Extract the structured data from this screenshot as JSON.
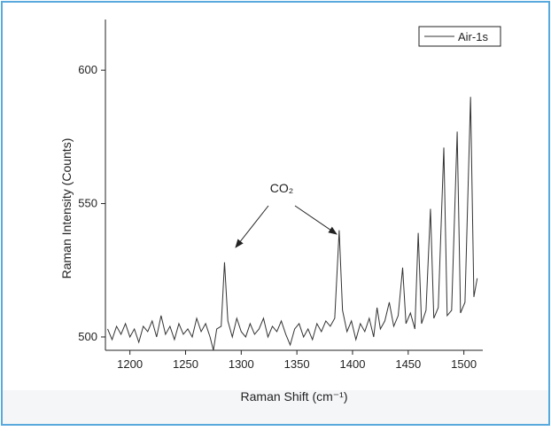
{
  "chart_data": {
    "type": "line",
    "x_label": "Raman Shift (cm⁻¹)",
    "y_label": "Raman Intensity (Counts)",
    "annotation": "CO₂",
    "xlim": [
      1178,
      1517
    ],
    "xticks": [
      1200,
      1250,
      1300,
      1350,
      1400,
      1450,
      1500
    ],
    "ylim": [
      495,
      619
    ],
    "yticks": [
      500,
      550,
      600
    ],
    "x": [
      1180,
      1184,
      1188,
      1192,
      1196,
      1200,
      1204,
      1208,
      1212,
      1216,
      1220,
      1224,
      1228,
      1232,
      1236,
      1240,
      1244,
      1248,
      1252,
      1256,
      1260,
      1264,
      1268,
      1272,
      1275,
      1278,
      1282,
      1285,
      1288,
      1292,
      1296,
      1300,
      1304,
      1308,
      1312,
      1316,
      1320,
      1324,
      1328,
      1332,
      1336,
      1340,
      1344,
      1348,
      1352,
      1356,
      1360,
      1364,
      1368,
      1372,
      1376,
      1380,
      1384,
      1388,
      1391,
      1395,
      1399,
      1403,
      1407,
      1411,
      1415,
      1419,
      1422,
      1425,
      1429,
      1433,
      1437,
      1441,
      1445,
      1448,
      1452,
      1456,
      1459,
      1462,
      1466,
      1470,
      1473,
      1477,
      1482,
      1485,
      1489,
      1494,
      1497,
      1501,
      1506,
      1509,
      1512
    ],
    "series": [
      {
        "name": "Air-1s",
        "color": "#333333",
        "values": [
          503,
          499,
          504,
          501,
          505,
          500,
          503,
          498,
          504,
          502,
          506,
          500,
          508,
          501,
          504,
          499,
          505,
          501,
          503,
          500,
          507,
          502,
          505,
          500,
          495,
          503,
          504,
          528,
          506,
          500,
          507,
          502,
          500,
          505,
          501,
          503,
          507,
          500,
          504,
          502,
          506,
          501,
          497,
          503,
          505,
          500,
          503,
          499,
          505,
          502,
          506,
          504,
          507,
          540,
          510,
          502,
          506,
          499,
          505,
          502,
          507,
          500,
          511,
          503,
          506,
          513,
          504,
          508,
          526,
          505,
          509,
          503,
          539,
          505,
          510,
          548,
          507,
          511,
          571,
          508,
          510,
          577,
          509,
          513,
          590,
          515,
          522
        ]
      }
    ]
  }
}
